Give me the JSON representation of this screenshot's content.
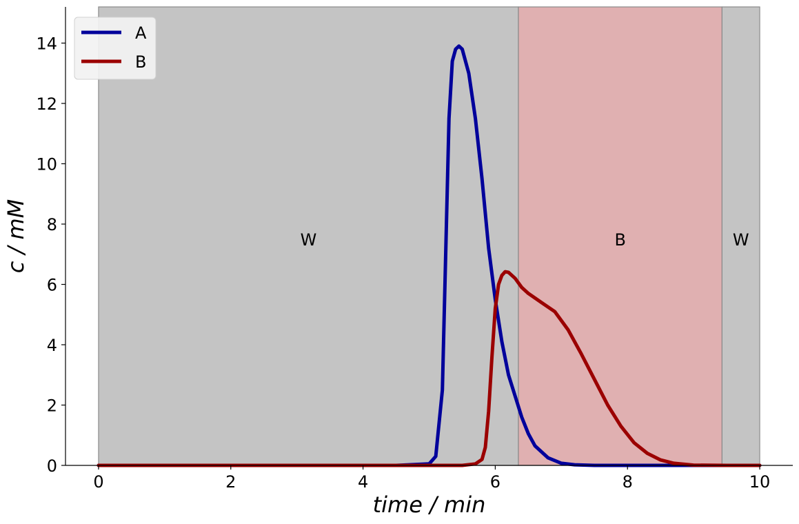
{
  "chart_data": {
    "type": "line",
    "title": "",
    "xlabel": "time / min",
    "ylabel": "c / mM",
    "xlim": [
      -0.5,
      10.5
    ],
    "ylim": [
      0,
      15.2
    ],
    "xticks": [
      0,
      2,
      4,
      6,
      8,
      10
    ],
    "yticks": [
      0,
      2,
      4,
      6,
      8,
      10,
      12,
      14
    ],
    "grid": false,
    "legend_position": "top-left",
    "regions": [
      {
        "label": "W",
        "x_start": 0,
        "x_end": 6.35,
        "color": "#c4c4c4"
      },
      {
        "label": "B",
        "x_start": 6.35,
        "x_end": 9.43,
        "color": "#e0b0b1"
      },
      {
        "label": "W",
        "x_start": 9.43,
        "x_end": 10,
        "color": "#c4c4c4"
      }
    ],
    "series": [
      {
        "name": "A",
        "color": "#00009b",
        "x": [
          0,
          4.5,
          5.0,
          5.1,
          5.2,
          5.25,
          5.3,
          5.35,
          5.4,
          5.45,
          5.5,
          5.6,
          5.7,
          5.8,
          5.9,
          6.0,
          6.1,
          6.2,
          6.3,
          6.4,
          6.5,
          6.6,
          6.8,
          7.0,
          7.2,
          7.5,
          8.0,
          9.0,
          10.0
        ],
        "y": [
          0,
          0,
          0.05,
          0.3,
          2.5,
          7.0,
          11.5,
          13.4,
          13.8,
          13.9,
          13.8,
          13.0,
          11.5,
          9.5,
          7.2,
          5.5,
          4.1,
          3.0,
          2.3,
          1.6,
          1.05,
          0.65,
          0.25,
          0.07,
          0.02,
          0,
          0,
          0,
          0
        ]
      },
      {
        "name": "B",
        "color": "#9b0000",
        "x": [
          0,
          5.5,
          5.7,
          5.8,
          5.85,
          5.9,
          5.95,
          6.0,
          6.05,
          6.1,
          6.15,
          6.2,
          6.3,
          6.4,
          6.5,
          6.7,
          6.9,
          7.1,
          7.3,
          7.5,
          7.7,
          7.9,
          8.1,
          8.3,
          8.5,
          8.7,
          9.0,
          9.5,
          10.0
        ],
        "y": [
          0,
          0,
          0.05,
          0.2,
          0.6,
          1.8,
          3.6,
          5.2,
          6.0,
          6.3,
          6.42,
          6.4,
          6.2,
          5.9,
          5.7,
          5.4,
          5.1,
          4.5,
          3.7,
          2.85,
          2.0,
          1.3,
          0.75,
          0.4,
          0.18,
          0.07,
          0.01,
          0,
          0
        ]
      }
    ]
  }
}
